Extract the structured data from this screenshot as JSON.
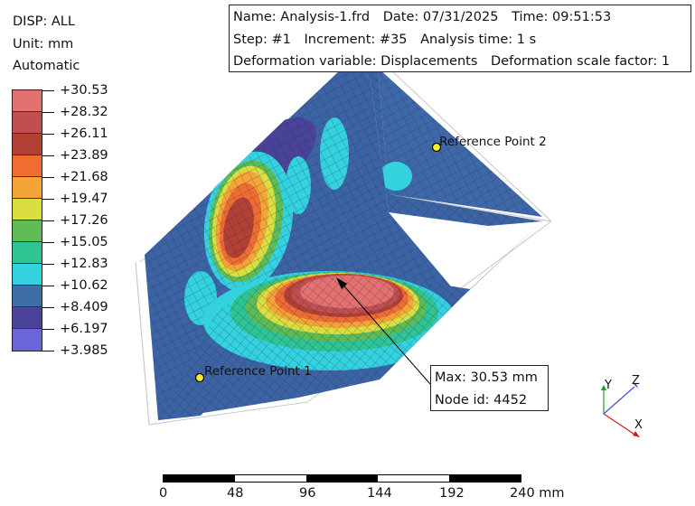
{
  "legend": {
    "variable": "DISP: ALL",
    "unit": "Unit: mm",
    "mode": "Automatic",
    "values": [
      "+30.53",
      "+28.32",
      "+26.11",
      "+23.89",
      "+21.68",
      "+19.47",
      "+17.26",
      "+15.05",
      "+12.83",
      "+10.62",
      "+8.409",
      "+6.197",
      "+3.985"
    ],
    "colors": [
      "#e3716f",
      "#bf4f50",
      "#b34035",
      "#ef6c32",
      "#f5a437",
      "#dadf3f",
      "#5fbb56",
      "#2fc494",
      "#34d2df",
      "#3d6ea6",
      "#4a4399",
      "#6a66d8"
    ]
  },
  "info": {
    "name": "Name: Analysis-1.frd",
    "date": "Date: 07/31/2025",
    "time": "Time: 09:51:53",
    "step": "Step: #1",
    "increment": "Increment: #35",
    "analysis_time": "Analysis time: 1 s",
    "deformation_variable": "Deformation variable: Displacements",
    "deformation_scale": "Deformation scale factor: 1"
  },
  "max_box": {
    "max": "Max: 30.53 mm",
    "node": "Node id: 4452"
  },
  "reference_points": {
    "rp1": "Reference Point 1",
    "rp2": "Reference Point 2"
  },
  "triad": {
    "x": "X",
    "y": "Y",
    "z": "Z"
  },
  "scale": {
    "ticks": [
      "0",
      "48",
      "96",
      "144",
      "192",
      "240 mm"
    ]
  }
}
